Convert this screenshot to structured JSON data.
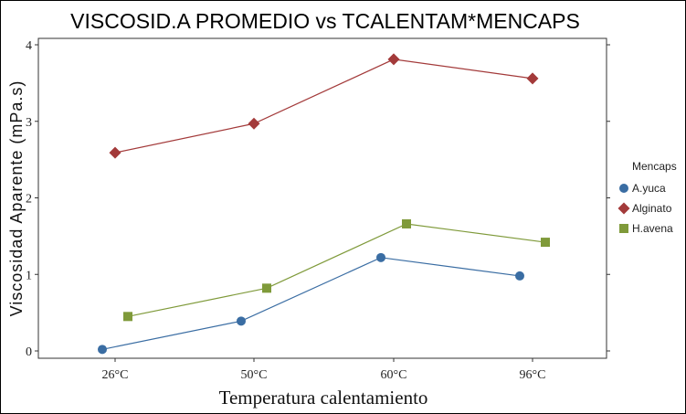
{
  "chart_data": {
    "type": "line",
    "title": "VISCOSID.A PROMEDIO vs TCALENTAM*MENCAPS",
    "xlabel": "Temperatura calentamiento",
    "ylabel": "Viscosidad Aparente (mPa.s)",
    "categories": [
      "26°C",
      "50°C",
      "60°C",
      "96°C"
    ],
    "ylim": [
      -0.1,
      4.05
    ],
    "yticks": [
      0,
      1,
      2,
      3,
      4
    ],
    "grid": false,
    "legend": {
      "title": "Mencaps",
      "position": "right"
    },
    "series": [
      {
        "name": "A.yuca",
        "values": [
          0.02,
          0.39,
          1.22,
          0.98
        ],
        "color": "#3A6DA3",
        "marker": "circle"
      },
      {
        "name": "Alginato",
        "values": [
          2.59,
          2.97,
          3.81,
          3.56
        ],
        "color": "#A33A3A",
        "marker": "diamond"
      },
      {
        "name": "H.avena",
        "values": [
          0.45,
          0.82,
          1.66,
          1.42
        ],
        "color": "#7F9A3A",
        "marker": "square"
      }
    ]
  }
}
